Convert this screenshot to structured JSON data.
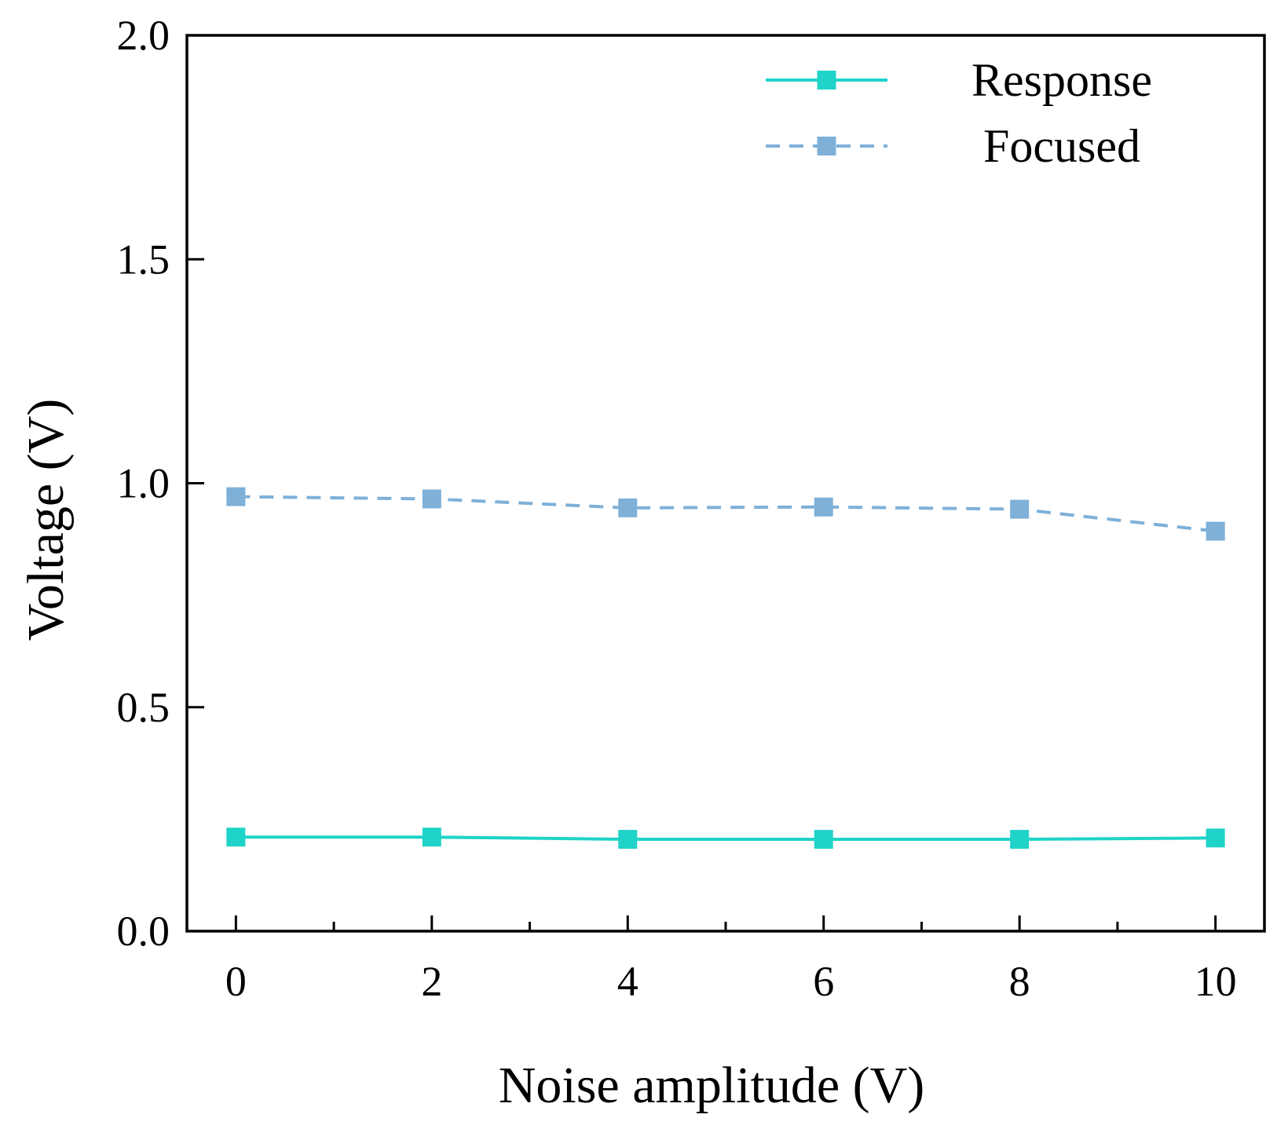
{
  "chart_data": {
    "type": "line",
    "title": "",
    "xlabel": "Noise amplitude (V)",
    "ylabel": "Voltage (V)",
    "xlim": [
      -0.5,
      10.5
    ],
    "ylim": [
      0.0,
      2.0
    ],
    "x_ticks": [
      0,
      2,
      4,
      6,
      8,
      10
    ],
    "x_tick_labels": [
      "0",
      "2",
      "4",
      "6",
      "8",
      "10"
    ],
    "x_minor_ticks": [
      1,
      3,
      5,
      7,
      9
    ],
    "y_ticks": [
      0.0,
      0.5,
      1.0,
      1.5,
      2.0
    ],
    "y_tick_labels": [
      "0.0",
      "0.5",
      "1.0",
      "1.5",
      "2.0"
    ],
    "grid": false,
    "legend_position": "top-right",
    "x": [
      0,
      2,
      4,
      6,
      8,
      10
    ],
    "series": [
      {
        "name": "Response",
        "values": [
          0.21,
          0.21,
          0.205,
          0.205,
          0.205,
          0.208
        ],
        "color": "#1FD3C8",
        "line_style": "solid",
        "marker": "square"
      },
      {
        "name": "Focused",
        "values": [
          0.97,
          0.965,
          0.945,
          0.947,
          0.942,
          0.893
        ],
        "color": "#7EB0D8",
        "line_style": "dashed",
        "marker": "square"
      }
    ]
  }
}
